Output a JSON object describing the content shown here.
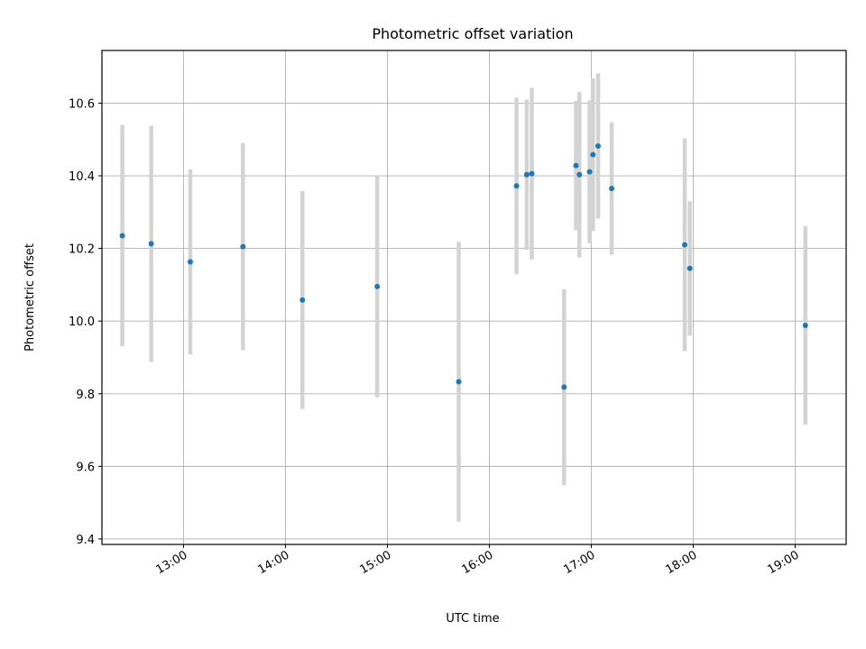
{
  "chart_data": {
    "type": "scatter",
    "title": "Photometric offset variation",
    "xlabel": "UTC time",
    "ylabel": "Photometric offset",
    "xlim": [
      "12:12",
      "19:30"
    ],
    "ylim": [
      9.385,
      10.745
    ],
    "x_tick_labels": [
      "13:00",
      "14:00",
      "15:00",
      "16:00",
      "17:00",
      "18:00",
      "19:00"
    ],
    "y_tick_labels": [
      "9.4",
      "9.6",
      "9.8",
      "10.0",
      "10.2",
      "10.4",
      "10.6"
    ],
    "y_ticks": [
      9.4,
      9.6,
      9.8,
      10.0,
      10.2,
      10.4,
      10.6
    ],
    "grid": true,
    "marker_color": "#1f77b4",
    "errorbar_color": "#d3d3d3",
    "points": [
      {
        "x": "12:24",
        "y": 10.235,
        "err": 0.305
      },
      {
        "x": "12:41",
        "y": 10.213,
        "err": 0.325
      },
      {
        "x": "13:04",
        "y": 10.163,
        "err": 0.255
      },
      {
        "x": "13:35",
        "y": 10.205,
        "err": 0.285
      },
      {
        "x": "14:10",
        "y": 10.058,
        "err": 0.3
      },
      {
        "x": "14:54",
        "y": 10.095,
        "err": 0.305
      },
      {
        "x": "15:42",
        "y": 9.833,
        "err": 0.385
      },
      {
        "x": "16:16",
        "y": 10.372,
        "err": 0.243
      },
      {
        "x": "16:22",
        "y": 10.403,
        "err": 0.207
      },
      {
        "x": "16:25",
        "y": 10.406,
        "err": 0.236
      },
      {
        "x": "16:44",
        "y": 9.818,
        "err": 0.27
      },
      {
        "x": "16:51",
        "y": 10.428,
        "err": 0.178
      },
      {
        "x": "16:53",
        "y": 10.403,
        "err": 0.228
      },
      {
        "x": "16:59",
        "y": 10.411,
        "err": 0.197
      },
      {
        "x": "17:01",
        "y": 10.458,
        "err": 0.21
      },
      {
        "x": "17:04",
        "y": 10.482,
        "err": 0.2
      },
      {
        "x": "17:12",
        "y": 10.365,
        "err": 0.182
      },
      {
        "x": "17:55",
        "y": 10.21,
        "err": 0.293
      },
      {
        "x": "17:58",
        "y": 10.145,
        "err": 0.185
      },
      {
        "x": "19:06",
        "y": 9.988,
        "err": 0.273
      }
    ]
  }
}
